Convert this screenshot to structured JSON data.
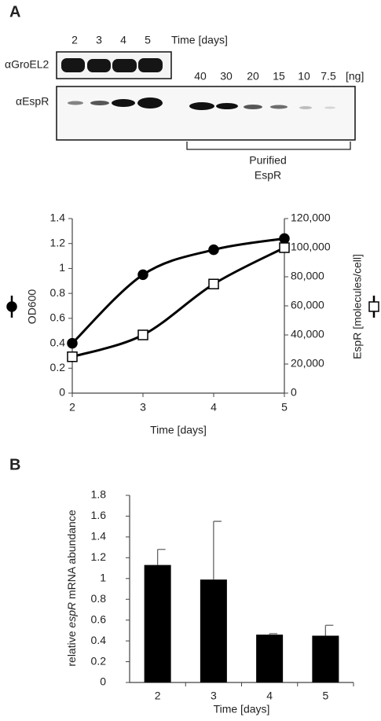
{
  "blot": {
    "panel": "A",
    "lanes": [
      "2",
      "3",
      "4",
      "5"
    ],
    "time_label": "Time [days]",
    "groel_label": "αGroEL2",
    "espr_label": "αEspR",
    "amounts": [
      "40",
      "30",
      "20",
      "15",
      "10",
      "7.5"
    ],
    "amount_unit": "[ng]",
    "bracket_label": [
      "Purified",
      "EspR"
    ]
  },
  "panel_b": "B",
  "chart_data": [
    {
      "type": "line",
      "smooth": true,
      "x": [
        2,
        3,
        4,
        5
      ],
      "xlim": [
        2,
        5
      ],
      "xticks": [
        2,
        3,
        4,
        5
      ],
      "xlabel": "Time [days]",
      "ylim": [
        0,
        1.4
      ],
      "yticks": [
        0,
        0.2,
        0.4,
        0.6,
        0.8,
        1,
        1.2,
        1.4
      ],
      "ylabel": "OD600",
      "y2lim": [
        0,
        120000
      ],
      "y2ticks": [
        0,
        {
          "value": 20000,
          "label": "20,000"
        },
        {
          "value": 40000,
          "label": "40,000"
        },
        {
          "value": 60000,
          "label": "60,000"
        },
        {
          "value": 80000,
          "label": "80,000"
        },
        {
          "value": 100000,
          "label": "100,000"
        },
        {
          "value": 120000,
          "label": "120,000"
        }
      ],
      "y2label": "EspR [molecules/cell]",
      "series": [
        {
          "color": "#000000",
          "fill": "#000000",
          "marker": "circle",
          "values": [
            0.4,
            0.95,
            1.15,
            1.24
          ]
        },
        {
          "color": "#000000",
          "fill": "#ffffff",
          "marker": "square",
          "axis": "y2",
          "values": [
            25000,
            40000,
            75000,
            100000
          ]
        }
      ]
    },
    {
      "type": "bar",
      "categories": [
        "2",
        "3",
        "4",
        "5"
      ],
      "values": [
        1.13,
        0.99,
        0.46,
        0.45
      ],
      "errors": [
        0.15,
        0.56,
        0.01,
        0.1
      ],
      "color": "#000000",
      "xlabel": "Time [days]",
      "ylabel": [
        "relative ",
        "espR",
        " mRNA abundance"
      ],
      "ylabel_italic_part": 1,
      "ylim": [
        0,
        1.8
      ],
      "yticks": [
        0,
        0.2,
        0.4,
        0.6,
        0.8,
        1,
        1.2,
        1.4,
        1.6,
        1.8
      ]
    }
  ]
}
